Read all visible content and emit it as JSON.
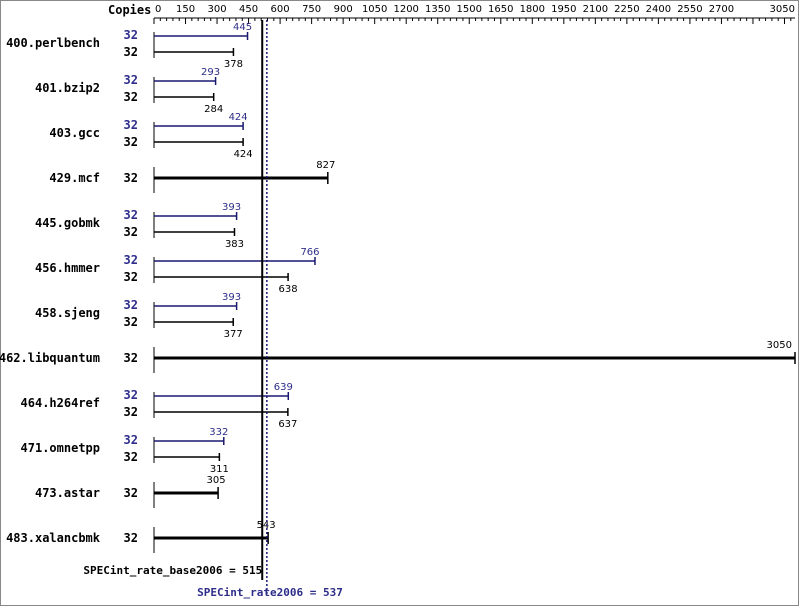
{
  "colors": {
    "peak": "#191970",
    "base": "#000000",
    "peak_text": "#2e2e8a",
    "background": "#ffffff"
  },
  "chart_data": {
    "type": "bar",
    "orientation": "horizontal",
    "xlabel": "Copies",
    "xticks": [
      "0",
      "150",
      "300",
      "450",
      "600",
      "750",
      "900",
      "1050",
      "1200",
      "1350",
      "1500",
      "1650",
      "1800",
      "1950",
      "2100",
      "2250",
      "2400",
      "2550",
      "2700",
      "3050"
    ],
    "xlim": [
      0,
      3050
    ],
    "categories": [
      "400.perlbench",
      "401.bzip2",
      "403.gcc",
      "429.mcf",
      "445.gobmk",
      "456.hmmer",
      "458.sjeng",
      "462.libquantum",
      "464.h264ref",
      "471.omnetpp",
      "473.astar",
      "483.xalancbmk"
    ],
    "series": [
      {
        "name": "peak",
        "copies": [
          "32",
          "32",
          "32",
          null,
          "32",
          "32",
          "32",
          null,
          "32",
          "32",
          null,
          null
        ],
        "values": [
          445,
          293,
          424,
          null,
          393,
          766,
          393,
          null,
          639,
          332,
          null,
          null
        ]
      },
      {
        "name": "base",
        "copies": [
          "32",
          "32",
          "32",
          "32",
          "32",
          "32",
          "32",
          "32",
          "32",
          "32",
          "32",
          "32"
        ],
        "values": [
          378,
          284,
          424,
          827,
          383,
          638,
          377,
          3050,
          637,
          311,
          305,
          543
        ]
      }
    ],
    "reference_lines": [
      {
        "name": "base",
        "label": "SPECint_rate_base2006 = 515",
        "value": 515
      },
      {
        "name": "peak",
        "label": "SPECint_rate2006 = 537",
        "value": 537
      }
    ]
  }
}
